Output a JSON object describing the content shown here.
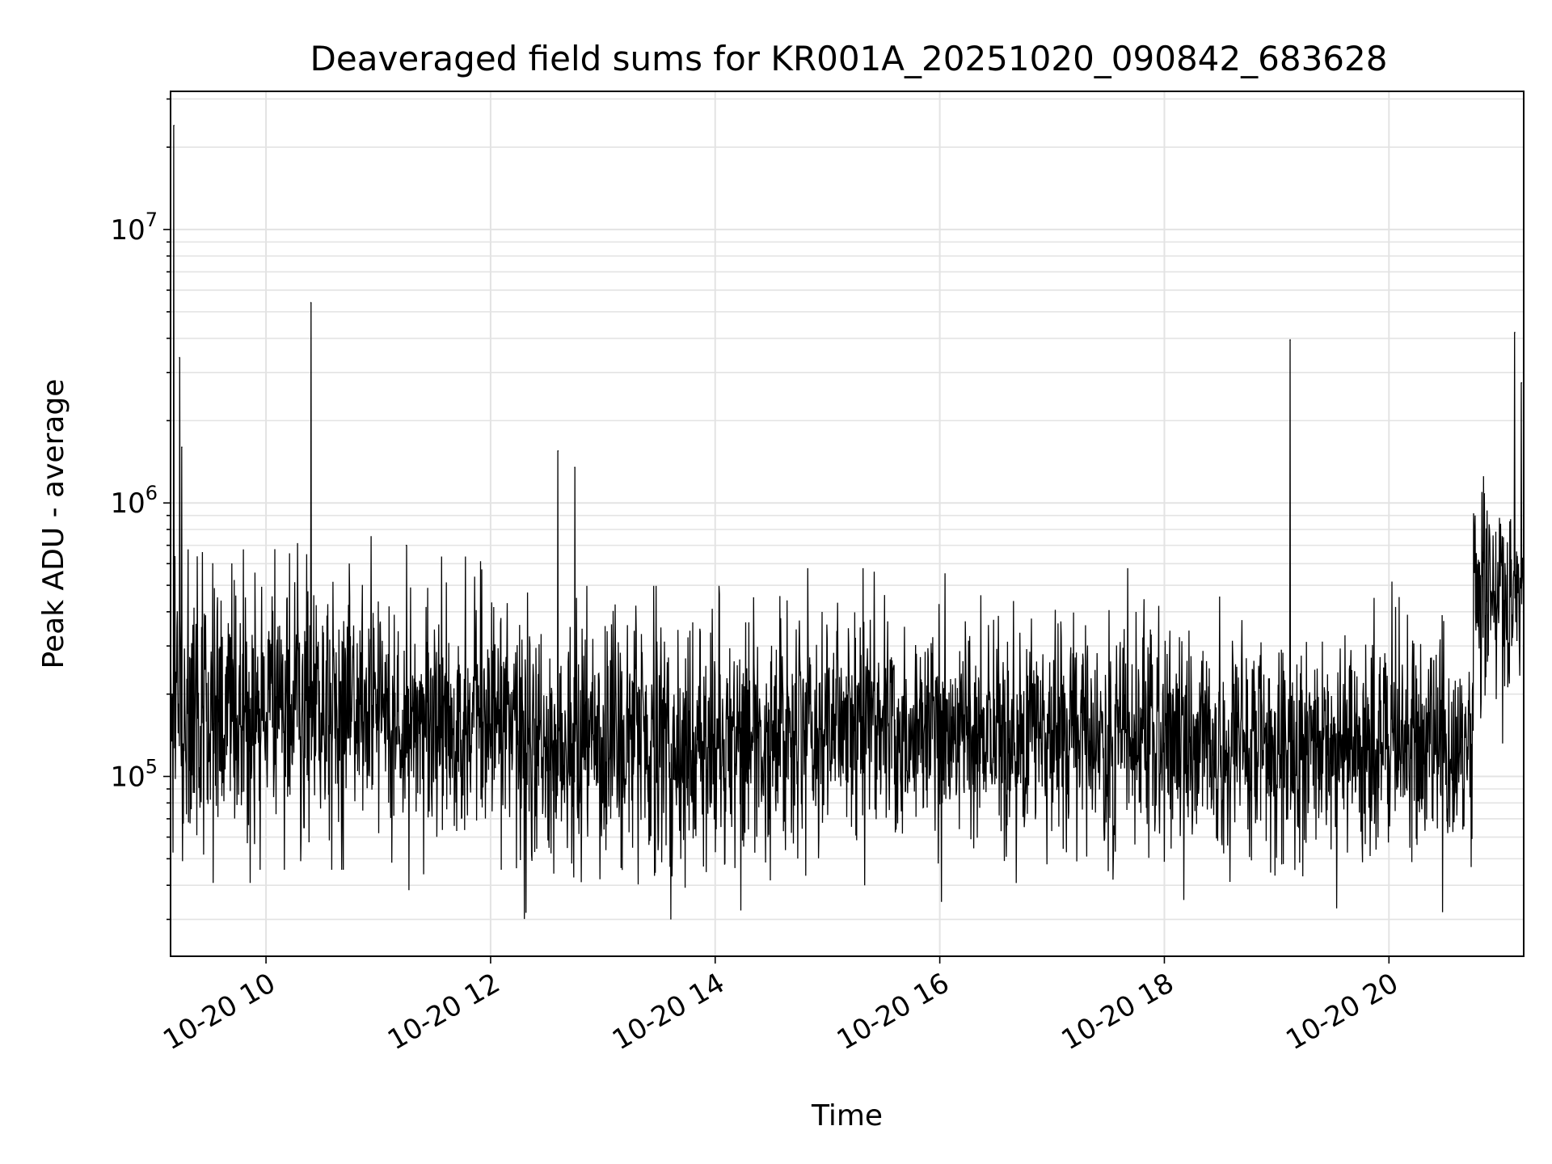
{
  "chart_data": {
    "type": "line",
    "title": "Deaveraged field sums for KR001A_20251020_090842_683628",
    "xlabel": "Time",
    "ylabel": "Peak ADU - average",
    "yscale": "log",
    "ylim": [
      22000,
      32000000
    ],
    "xlim_hours": [
      9.15,
      21.2
    ],
    "grid": true,
    "line_color": "#000000",
    "x_ticks": [
      {
        "hour": 10,
        "label": "10-20 10"
      },
      {
        "hour": 12,
        "label": "10-20 12"
      },
      {
        "hour": 14,
        "label": "10-20 14"
      },
      {
        "hour": 16,
        "label": "10-20 16"
      },
      {
        "hour": 18,
        "label": "10-20 18"
      },
      {
        "hour": 20,
        "label": "10-20 20"
      }
    ],
    "y_ticks": [
      {
        "value": 100000,
        "base": "10",
        "exp": "5"
      },
      {
        "value": 1000000,
        "base": "10",
        "exp": "6"
      },
      {
        "value": 10000000,
        "base": "10",
        "exp": "7"
      }
    ],
    "baseline_segments": [
      {
        "start_hour": 9.15,
        "end_hour": 9.9,
        "median": 170000,
        "spread": 0.55
      },
      {
        "start_hour": 9.9,
        "end_hour": 11.0,
        "median": 190000,
        "spread": 0.45
      },
      {
        "start_hour": 11.0,
        "end_hour": 12.3,
        "median": 160000,
        "spread": 0.45
      },
      {
        "start_hour": 12.3,
        "end_hour": 14.5,
        "median": 125000,
        "spread": 0.45
      },
      {
        "start_hour": 14.5,
        "end_hour": 18.5,
        "median": 145000,
        "spread": 0.4
      },
      {
        "start_hour": 18.5,
        "end_hour": 20.75,
        "median": 130000,
        "spread": 0.42
      },
      {
        "start_hour": 20.75,
        "end_hour": 21.2,
        "median": 450000,
        "spread": 0.35
      }
    ],
    "peaks": [
      {
        "hour": 9.18,
        "value": 24000000
      },
      {
        "hour": 9.23,
        "value": 3400000
      },
      {
        "hour": 9.25,
        "value": 1600000
      },
      {
        "hour": 10.4,
        "value": 5400000
      },
      {
        "hour": 11.25,
        "value": 700000
      },
      {
        "hour": 12.6,
        "value": 1550000
      },
      {
        "hour": 12.75,
        "value": 1350000
      },
      {
        "hour": 19.12,
        "value": 3950000
      },
      {
        "hour": 20.85,
        "value": 1080000
      },
      {
        "hour": 21.12,
        "value": 4200000
      },
      {
        "hour": 21.18,
        "value": 2750000
      }
    ]
  }
}
